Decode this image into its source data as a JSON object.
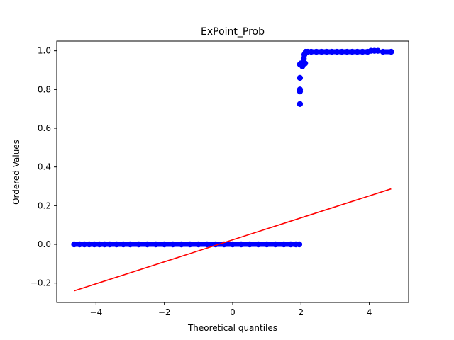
{
  "chart_data": {
    "type": "scatter",
    "title": "ExPoint_Prob",
    "xlabel": "Theoretical quantiles",
    "ylabel": "Ordered Values",
    "xlim": [
      -5.15,
      5.15
    ],
    "ylim": [
      -0.3,
      1.05
    ],
    "xticks": [
      -4,
      -2,
      0,
      2,
      4
    ],
    "xtick_labels": [
      "−4",
      "−2",
      "0",
      "2",
      "4"
    ],
    "yticks": [
      -0.2,
      0.0,
      0.2,
      0.4,
      0.6,
      0.8,
      1.0
    ],
    "ytick_labels": [
      "−0.2",
      "0.0",
      "0.2",
      "0.4",
      "0.6",
      "0.8",
      "1.0"
    ],
    "grid": false,
    "series": [
      {
        "kind": "points",
        "color": "#0000ff",
        "points": [
          {
            "x": -4.64,
            "y": 0.0
          },
          {
            "x": -4.48,
            "y": 0.0
          },
          {
            "x": -4.34,
            "y": 0.0
          },
          {
            "x": -4.2,
            "y": 0.0
          },
          {
            "x": -4.05,
            "y": 0.0
          },
          {
            "x": -3.9,
            "y": 0.0
          },
          {
            "x": -3.75,
            "y": 0.0
          },
          {
            "x": -3.6,
            "y": 0.0
          },
          {
            "x": -3.4,
            "y": 0.0
          },
          {
            "x": -3.2,
            "y": 0.0
          },
          {
            "x": -3.0,
            "y": 0.0
          },
          {
            "x": -2.75,
            "y": 0.0
          },
          {
            "x": -2.5,
            "y": 0.0
          },
          {
            "x": -2.25,
            "y": 0.0
          },
          {
            "x": -2.0,
            "y": 0.0
          },
          {
            "x": -1.75,
            "y": 0.0
          },
          {
            "x": -1.5,
            "y": 0.0
          },
          {
            "x": -1.25,
            "y": 0.0
          },
          {
            "x": -1.0,
            "y": 0.0
          },
          {
            "x": -0.75,
            "y": 0.0
          },
          {
            "x": -0.5,
            "y": 0.0
          },
          {
            "x": -0.25,
            "y": 0.0
          },
          {
            "x": 0.0,
            "y": 0.0
          },
          {
            "x": 0.25,
            "y": 0.0
          },
          {
            "x": 0.5,
            "y": 0.0
          },
          {
            "x": 0.75,
            "y": 0.0
          },
          {
            "x": 1.0,
            "y": 0.0
          },
          {
            "x": 1.25,
            "y": 0.0
          },
          {
            "x": 1.5,
            "y": 0.0
          },
          {
            "x": 1.7,
            "y": 0.0
          },
          {
            "x": 1.85,
            "y": 0.0
          },
          {
            "x": 1.95,
            "y": 0.0
          },
          {
            "x": 1.97,
            "y": 0.725
          },
          {
            "x": 1.97,
            "y": 0.79
          },
          {
            "x": 1.97,
            "y": 0.8
          },
          {
            "x": 1.97,
            "y": 0.86
          },
          {
            "x": 1.97,
            "y": 0.93
          },
          {
            "x": 2.0,
            "y": 0.935
          },
          {
            "x": 2.04,
            "y": 0.92
          },
          {
            "x": 2.08,
            "y": 0.96
          },
          {
            "x": 2.1,
            "y": 0.98
          },
          {
            "x": 2.12,
            "y": 0.935
          },
          {
            "x": 2.14,
            "y": 0.995
          },
          {
            "x": 2.2,
            "y": 0.995
          },
          {
            "x": 2.3,
            "y": 0.995
          },
          {
            "x": 2.45,
            "y": 0.995
          },
          {
            "x": 2.6,
            "y": 0.995
          },
          {
            "x": 2.75,
            "y": 0.995
          },
          {
            "x": 2.9,
            "y": 0.995
          },
          {
            "x": 3.05,
            "y": 0.995
          },
          {
            "x": 3.2,
            "y": 0.995
          },
          {
            "x": 3.35,
            "y": 0.995
          },
          {
            "x": 3.5,
            "y": 0.995
          },
          {
            "x": 3.65,
            "y": 0.995
          },
          {
            "x": 3.8,
            "y": 0.995
          },
          {
            "x": 3.95,
            "y": 0.995
          },
          {
            "x": 4.05,
            "y": 1.0
          },
          {
            "x": 4.15,
            "y": 1.0
          },
          {
            "x": 4.25,
            "y": 1.0
          },
          {
            "x": 4.4,
            "y": 0.995
          },
          {
            "x": 4.64,
            "y": 0.995
          }
        ]
      },
      {
        "kind": "fit-line",
        "color": "#ff0000",
        "x": [
          -4.64,
          4.64
        ],
        "y": [
          -0.24,
          0.287
        ]
      }
    ]
  }
}
